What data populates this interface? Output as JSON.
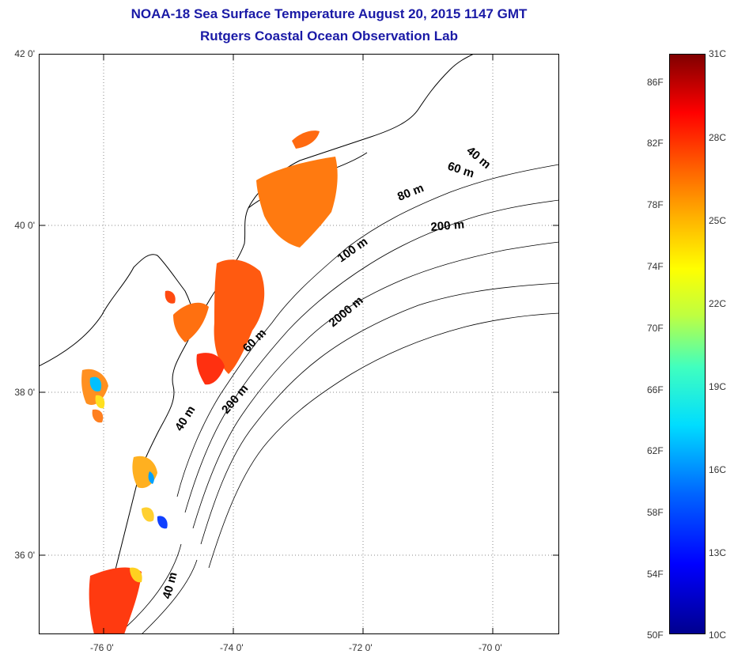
{
  "title_line1": "NOAA-18 Sea Surface Temperature August 20, 2015 1147 GMT",
  "title_line2": "Rutgers Coastal Ocean Observation Lab",
  "map": {
    "lat_labels": [
      "42 0'",
      "40 0'",
      "38 0'",
      "36 0'"
    ],
    "lon_labels": [
      "-76 0'",
      "-74 0'",
      "-72 0'",
      "-70 0'"
    ],
    "contour_labels": [
      "40 m",
      "60 m",
      "80 m",
      "200 m",
      "100 m",
      "2000 m",
      "60 m",
      "200 m",
      "40 m",
      "40 m"
    ]
  },
  "colorbar": {
    "fahrenheit_labels": [
      "86F",
      "82F",
      "78F",
      "74F",
      "70F",
      "66F",
      "62F",
      "58F",
      "54F",
      "50F"
    ],
    "celsius_labels": [
      "31C",
      "28C",
      "25C",
      "22C",
      "19C",
      "16C",
      "13C",
      "10C"
    ],
    "colors": [
      "#00008f",
      "#0000ff",
      "#0064ff",
      "#00ddff",
      "#40ffbf",
      "#bfff40",
      "#ffff00",
      "#ffb000",
      "#ff6400",
      "#ff0000",
      "#800000"
    ]
  }
}
